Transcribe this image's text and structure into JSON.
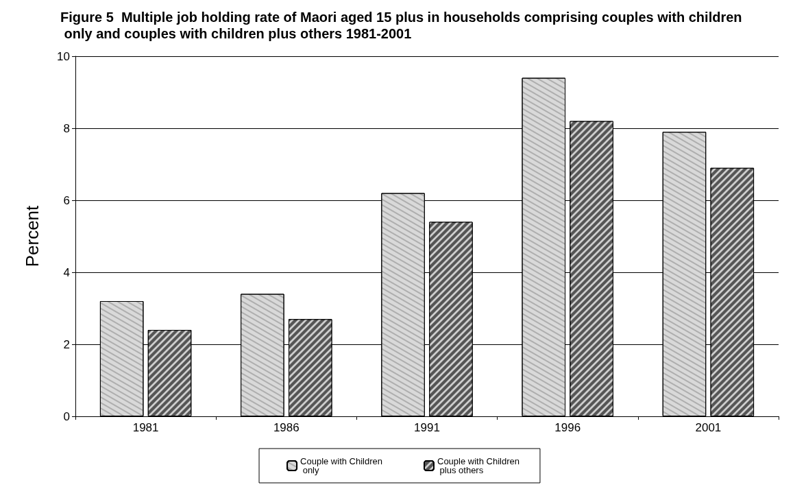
{
  "chart_data": {
    "type": "bar",
    "title": "Figure 5  Multiple job holding rate of Maori aged 15 plus in households comprising couples with children only and couples with children plus others 1981-2001",
    "ylabel": "Percent",
    "categories": [
      "1981",
      "1986",
      "1991",
      "1996",
      "2001"
    ],
    "series": [
      {
        "name": "Couple with Children only",
        "color": "#d9d9d9",
        "values": [
          3.2,
          3.4,
          6.2,
          9.4,
          7.9
        ]
      },
      {
        "name": "Couple with Children plus others",
        "color": "#555555",
        "values": [
          2.4,
          2.7,
          5.4,
          8.2,
          6.9
        ]
      }
    ],
    "ylim": [
      0,
      10
    ],
    "yticks": [
      0,
      2,
      4,
      6,
      8,
      10
    ],
    "grid": "y",
    "legend": "bottom"
  }
}
